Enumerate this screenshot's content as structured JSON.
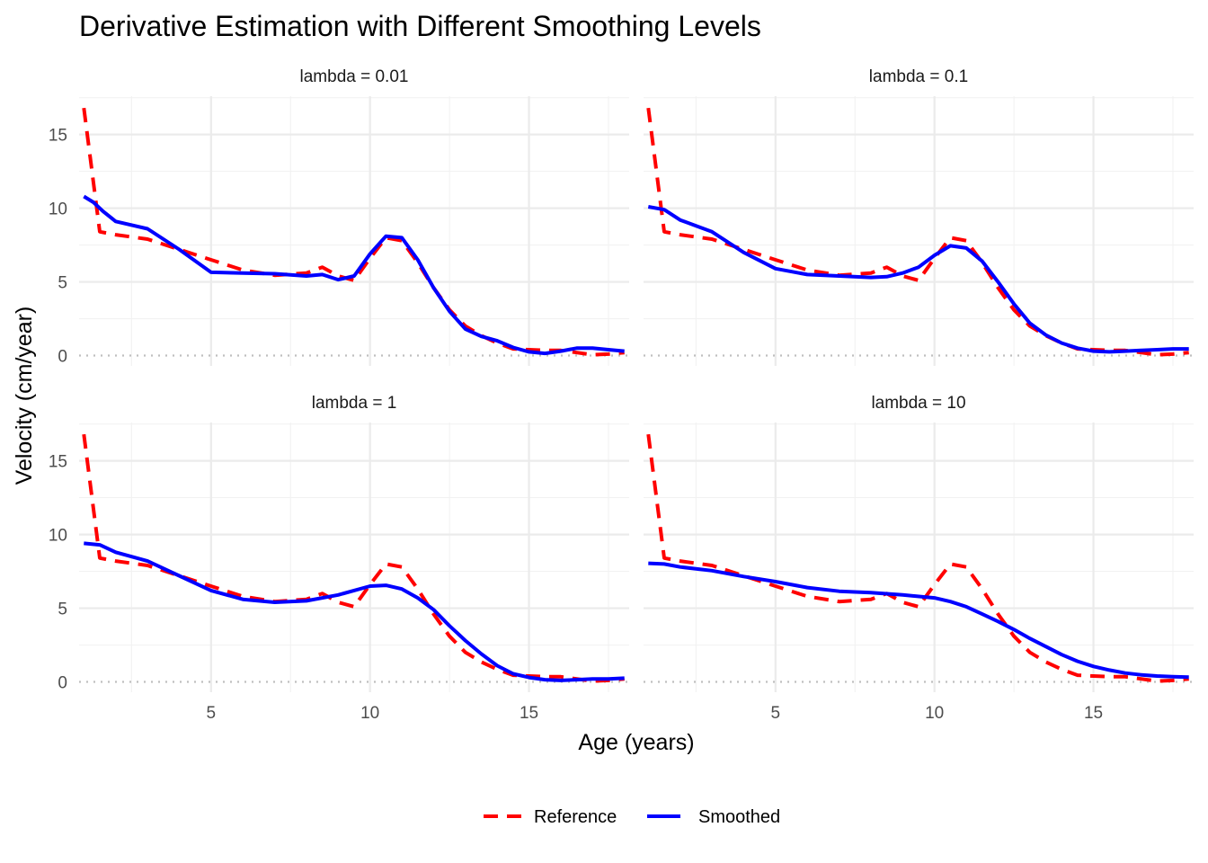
{
  "chart_data": {
    "type": "line",
    "title": "Derivative Estimation with Different Smoothing Levels",
    "xlabel": "Age (years)",
    "ylabel": "Velocity (cm/year)",
    "xlim": [
      0.85,
      18.15
    ],
    "ylim": [
      -0.7,
      17.6
    ],
    "x_ticks": [
      5,
      10,
      15
    ],
    "y_ticks": [
      0,
      5,
      10,
      15
    ],
    "x_minor_ticks": [
      2.5,
      7.5,
      12.5,
      17.5
    ],
    "y_minor_ticks": [
      2.5,
      7.5,
      12.5,
      17.5
    ],
    "grid": true,
    "hline": {
      "y": 0,
      "style": "dotted",
      "color": "#bfbfbf"
    },
    "legend": {
      "position": "bottom",
      "entries": [
        {
          "label": "Reference",
          "color": "#ff0000",
          "style": "dashed"
        },
        {
          "label": "Smoothed",
          "color": "#0000ff",
          "style": "solid"
        }
      ]
    },
    "reference": {
      "name": "Reference",
      "x": [
        1,
        1.5,
        2,
        3,
        4,
        5,
        6,
        7,
        8,
        8.5,
        9,
        9.5,
        10,
        10.5,
        11,
        11.5,
        12,
        12.5,
        13,
        13.5,
        14,
        14.5,
        15,
        15.5,
        16,
        16.5,
        17,
        17.5,
        18
      ],
      "y": [
        16.8,
        8.4,
        8.2,
        7.9,
        7.2,
        6.5,
        5.8,
        5.45,
        5.6,
        6.0,
        5.4,
        5.1,
        6.6,
        8.0,
        7.8,
        6.3,
        4.6,
        3.1,
        2.0,
        1.35,
        0.85,
        0.45,
        0.4,
        0.35,
        0.35,
        0.2,
        0.05,
        0.1,
        0.2
      ]
    },
    "panels": [
      {
        "strip": "lambda = 0.01",
        "smoothed": {
          "x": [
            1,
            1.3,
            1.6,
            2,
            3,
            4,
            5,
            6,
            7,
            8,
            8.5,
            9,
            9.5,
            10,
            10.5,
            11,
            11.5,
            12,
            12.5,
            13,
            13.5,
            14,
            14.5,
            15,
            15.5,
            16,
            16.5,
            17,
            17.5,
            18
          ],
          "y": [
            10.8,
            10.4,
            9.8,
            9.1,
            8.6,
            7.2,
            5.65,
            5.6,
            5.55,
            5.4,
            5.5,
            5.15,
            5.4,
            6.9,
            8.1,
            8.0,
            6.5,
            4.6,
            3.0,
            1.8,
            1.3,
            1.0,
            0.55,
            0.25,
            0.15,
            0.3,
            0.5,
            0.5,
            0.4,
            0.3
          ]
        }
      },
      {
        "strip": "lambda = 0.1",
        "smoothed": {
          "x": [
            1,
            1.5,
            2,
            3,
            4,
            5,
            6,
            7,
            8,
            8.5,
            9,
            9.5,
            10,
            10.5,
            11,
            11.5,
            12,
            12.5,
            13,
            13.5,
            14,
            14.5,
            15,
            15.5,
            16,
            16.5,
            17,
            17.5,
            18
          ],
          "y": [
            10.1,
            9.9,
            9.2,
            8.4,
            7.0,
            5.9,
            5.5,
            5.4,
            5.3,
            5.35,
            5.6,
            6.0,
            6.8,
            7.45,
            7.3,
            6.4,
            5.0,
            3.5,
            2.2,
            1.4,
            0.85,
            0.5,
            0.3,
            0.25,
            0.3,
            0.35,
            0.4,
            0.45,
            0.45
          ]
        }
      },
      {
        "strip": "lambda = 1",
        "smoothed": {
          "x": [
            1,
            1.5,
            2,
            3,
            4,
            5,
            6,
            7,
            8,
            9,
            10,
            10.5,
            11,
            11.5,
            12,
            12.5,
            13,
            13.5,
            14,
            14.5,
            15,
            15.5,
            16,
            16.5,
            17,
            17.5,
            18
          ],
          "y": [
            9.4,
            9.3,
            8.8,
            8.2,
            7.2,
            6.2,
            5.6,
            5.4,
            5.5,
            5.9,
            6.5,
            6.55,
            6.3,
            5.7,
            4.9,
            3.8,
            2.8,
            1.9,
            1.1,
            0.55,
            0.3,
            0.15,
            0.1,
            0.15,
            0.2,
            0.2,
            0.25
          ]
        }
      },
      {
        "strip": "lambda = 10",
        "smoothed": {
          "x": [
            1,
            1.5,
            2,
            3,
            4,
            5,
            6,
            7,
            8,
            9,
            10,
            10.5,
            11,
            11.5,
            12,
            12.5,
            13,
            13.5,
            14,
            14.5,
            15,
            15.5,
            16,
            16.5,
            17,
            17.5,
            18
          ],
          "y": [
            8.05,
            8.0,
            7.8,
            7.55,
            7.15,
            6.8,
            6.4,
            6.15,
            6.05,
            5.9,
            5.7,
            5.45,
            5.1,
            4.6,
            4.1,
            3.55,
            2.95,
            2.4,
            1.85,
            1.4,
            1.05,
            0.8,
            0.6,
            0.48,
            0.4,
            0.35,
            0.32
          ]
        }
      }
    ]
  }
}
